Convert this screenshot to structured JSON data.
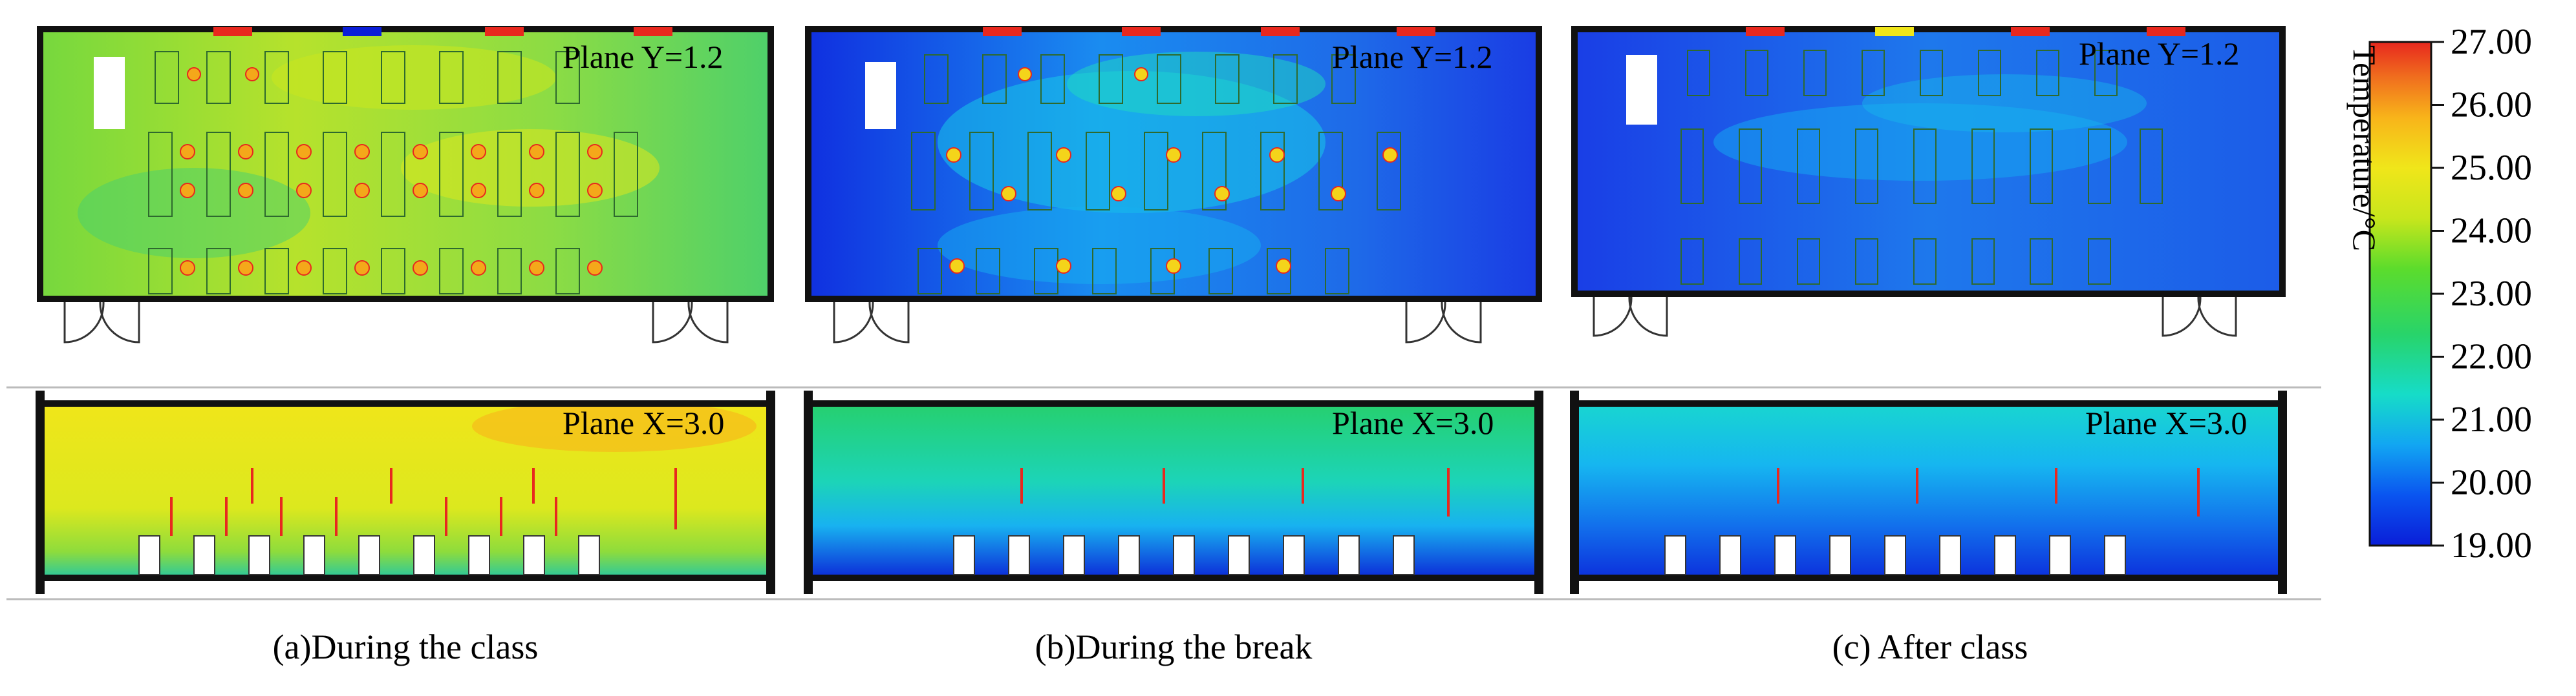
{
  "panels": [
    {
      "id": "a",
      "caption": "(a)During the class",
      "plane_y_label": "Plane Y=1.2",
      "plane_x_label": "Plane X=3.0"
    },
    {
      "id": "b",
      "caption": "(b)During the break",
      "plane_y_label": "Plane Y=1.2",
      "plane_x_label": "Plane X=3.0"
    },
    {
      "id": "c",
      "caption": "(c) After  class",
      "plane_y_label": "Plane Y=1.2",
      "plane_x_label": "Plane X=3.0"
    }
  ],
  "colorbar": {
    "title": "Temperature/°C",
    "min": 19.0,
    "max": 27.0,
    "ticks": [
      "27.00",
      "26.00",
      "25.00",
      "24.00",
      "23.00",
      "22.00",
      "21.00",
      "20.00",
      "19.00"
    ],
    "colors": [
      "#0a1ed8",
      "#0a55f0",
      "#12a6f2",
      "#16dcc8",
      "#28d46a",
      "#5cdc2c",
      "#c8e61c",
      "#f0e61a",
      "#f8b41a",
      "#f06e1e",
      "#e8281e"
    ]
  },
  "panel_fill": {
    "a": "#8ed84a",
    "b": "#1b3fe6",
    "c": "#1d6fea"
  }
}
